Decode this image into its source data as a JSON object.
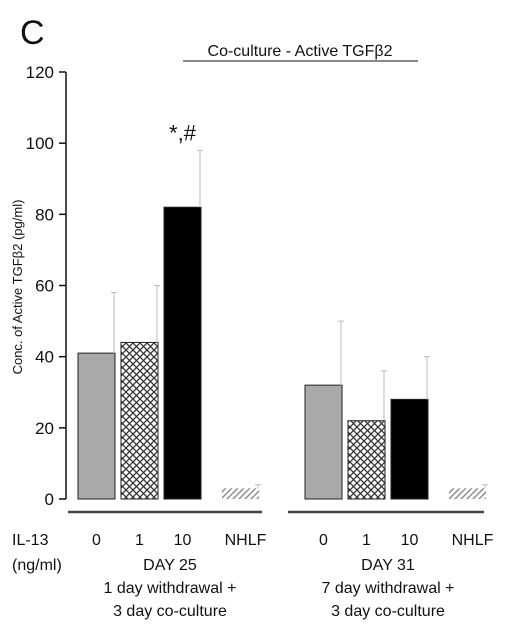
{
  "chart_data": {
    "type": "bar",
    "panel_label": "C",
    "title": "Co-culture - Active TGFβ2",
    "ylabel": "Conc. of Active TGFβ2 (pg/ml)",
    "ylim": [
      0,
      120
    ],
    "yticks": [
      0,
      20,
      40,
      60,
      80,
      100,
      120
    ],
    "x_row_label_line1": "IL-13",
    "x_row_label_line2": "(ng/ml)",
    "fills": {
      "0": {
        "pattern": "gray",
        "color": "#a9a9a9"
      },
      "1": {
        "pattern": "crosshatch",
        "color": "#555555"
      },
      "10": {
        "pattern": "solid",
        "color": "#000000"
      },
      "NHLF": {
        "pattern": "diagonal",
        "color": "#888888"
      }
    },
    "groups": [
      {
        "day": "DAY 25",
        "note_line1": "1 day withdrawal +",
        "note_line2": "3 day co-culture",
        "bars": [
          {
            "category": "0",
            "value": 41,
            "error": 17
          },
          {
            "category": "1",
            "value": 44,
            "error": 16
          },
          {
            "category": "10",
            "value": 82,
            "error": 16,
            "annotation": "*,#"
          },
          {
            "category": "NHLF",
            "value": 3,
            "error": 1
          }
        ]
      },
      {
        "day": "DAY 31",
        "note_line1": "7 day withdrawal +",
        "note_line2": "3 day co-culture",
        "bars": [
          {
            "category": "0",
            "value": 32,
            "error": 18
          },
          {
            "category": "1",
            "value": 22,
            "error": 14
          },
          {
            "category": "10",
            "value": 28,
            "error": 12
          },
          {
            "category": "NHLF",
            "value": 3,
            "error": 1
          }
        ]
      }
    ]
  }
}
